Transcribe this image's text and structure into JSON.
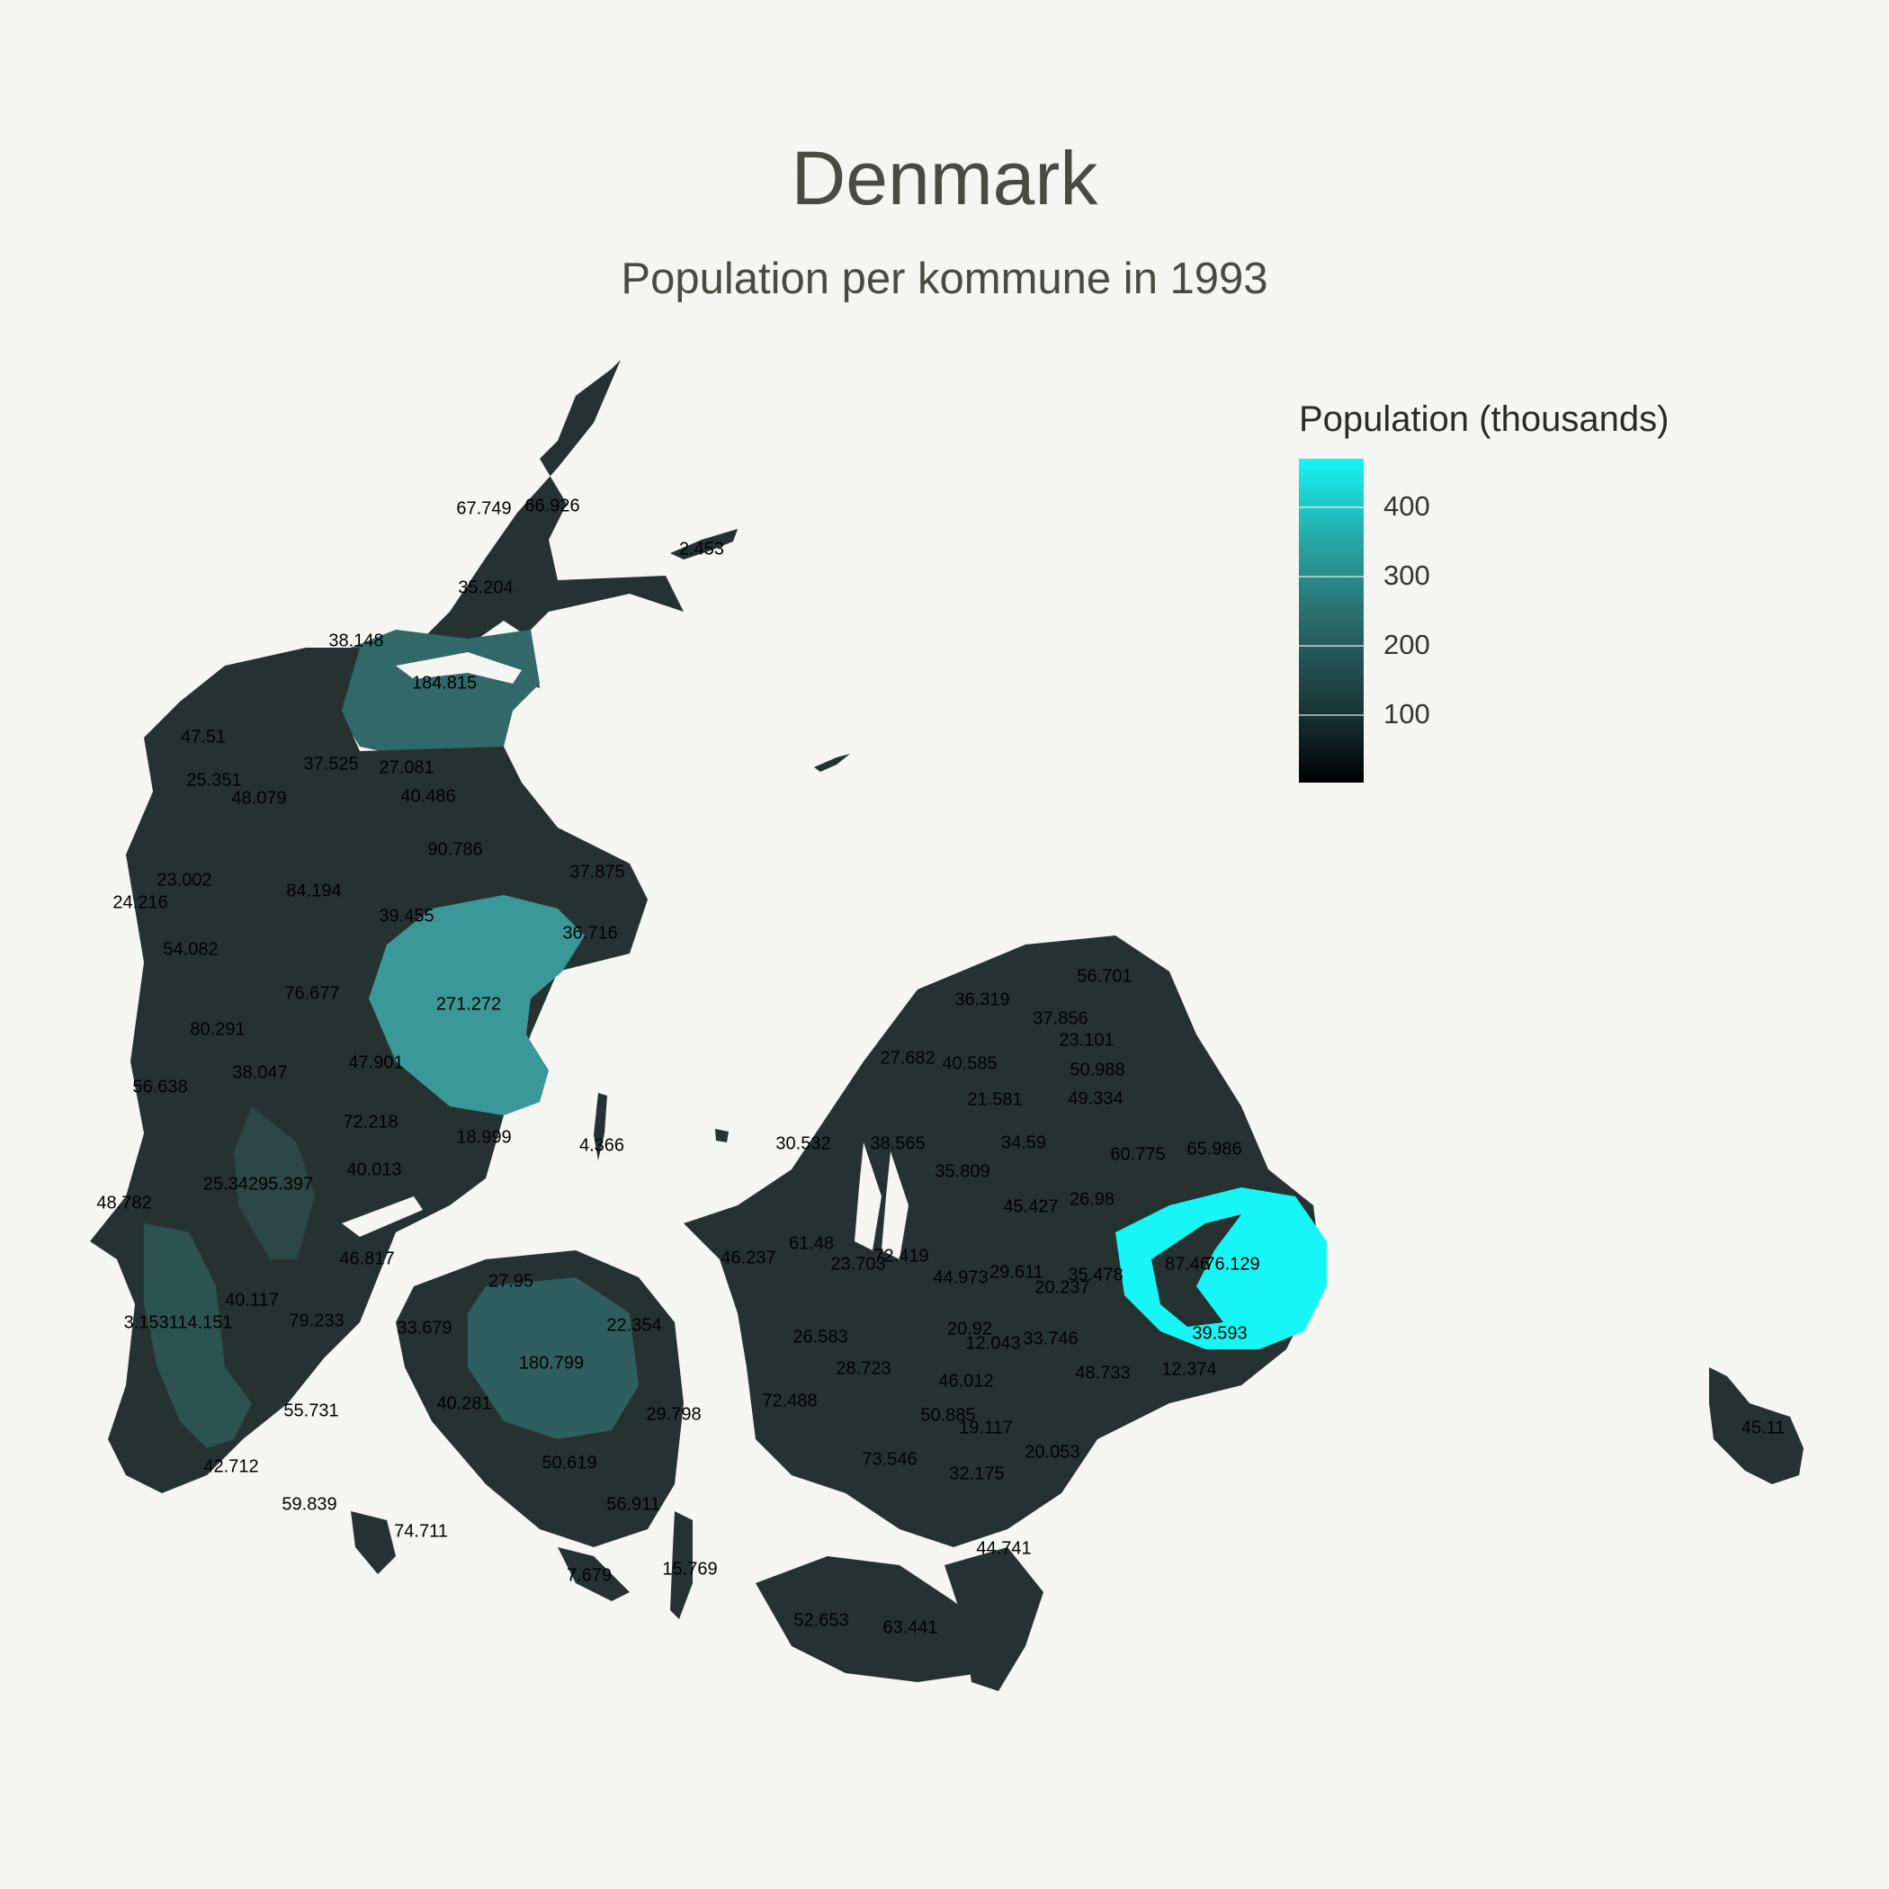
{
  "title": "Denmark",
  "subtitle": "Population per kommune in 1993",
  "legend": {
    "title": "Population (thousands)",
    "ticks": [
      "100",
      "200",
      "300",
      "400"
    ],
    "colors": {
      "low": "#000000",
      "mid": "#2a6a6a",
      "high": "#18f5f5"
    }
  },
  "colors": {
    "background": "#f5f5f3",
    "land_default": "#263232",
    "aarhus": "#3a9898",
    "aalborg": "#316868",
    "odense": "#2f5e5e",
    "esbjerg": "#2d5252",
    "copenhagen": "#18f5f5"
  },
  "kommune_labels": [
    "67.749",
    "66.926",
    "2.453",
    "35.204",
    "38.148",
    "184.815",
    "47.51",
    "37.525",
    "27.081",
    "25.351",
    "40.486",
    "48.079",
    "90.786",
    "23.002",
    "37.875",
    "24.216",
    "84.194",
    "39.455",
    "36.716",
    "54.082",
    "56.701",
    "76.677",
    "271.272",
    "36.319",
    "37.856",
    "80.291",
    "23.101",
    "27.682",
    "40.585",
    "50.988",
    "47.901",
    "38.047",
    "56.638",
    "21.581",
    "49.334",
    "72.218",
    "18.999",
    "30.532",
    "38.565",
    "34.59",
    "60.775",
    "65.986",
    "4.366",
    "40.013",
    "35.809",
    "25.34295.397",
    "26.98",
    "45.427",
    "48.782",
    "61.48",
    "72.419",
    "46.817",
    "46.237",
    "23.703",
    "87.46",
    "76.129",
    "27.95",
    "44.973",
    "29.611",
    "35.478",
    "20.237",
    "40.117",
    "3.153114.151",
    "79.233",
    "33.679",
    "22.354",
    "26.583",
    "20.92",
    "12.043",
    "33.746",
    "39.593",
    "180.799",
    "28.723",
    "48.733",
    "12.374",
    "46.012",
    "55.731",
    "40.281",
    "72.488",
    "50.885",
    "29.798",
    "19.117",
    "42.712",
    "50.619",
    "73.546",
    "32.175",
    "20.053",
    "59.839",
    "56.911",
    "74.711",
    "44.741",
    "7.679",
    "15.769",
    "52.653",
    "63.441",
    "45.11"
  ]
}
